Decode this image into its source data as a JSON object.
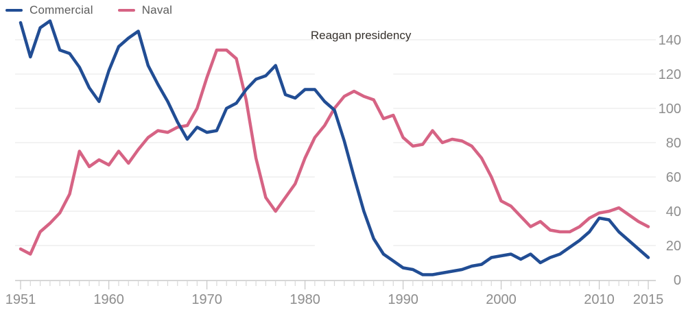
{
  "legend": {
    "items": [
      {
        "label": "Commercial"
      },
      {
        "label": "Naval"
      }
    ]
  },
  "colors": {
    "commercial": "#214d94",
    "naval": "#d66384",
    "grid": "#e6e6e6",
    "baseline": "#c8c8c8",
    "tick": "#d8d8d8",
    "tick_major": "#c6c6c6",
    "axis_text": "#8d8d8d",
    "legend_text": "#5c5c5c",
    "annotation_text": "#35302b",
    "background": "#ffffff",
    "band": "#ffffff"
  },
  "chart_data": {
    "type": "line",
    "title": "",
    "xlabel": "",
    "ylabel": "",
    "grid": true,
    "y_axis_side": "right",
    "legend_position": "top-left",
    "ylim": [
      0,
      140
    ],
    "y_ticks": [
      0,
      20,
      40,
      60,
      80,
      100,
      120,
      140
    ],
    "x_tick_labels": [
      "1951",
      "1960",
      "1970",
      "1980",
      "1990",
      "2000",
      "2010",
      "2015"
    ],
    "annotation": {
      "label": "Reagan presidency",
      "from_year": 1981,
      "to_year": 1989
    },
    "years": [
      1951,
      1952,
      1953,
      1954,
      1955,
      1956,
      1957,
      1958,
      1959,
      1960,
      1961,
      1962,
      1963,
      1964,
      1965,
      1966,
      1967,
      1968,
      1969,
      1970,
      1971,
      1972,
      1973,
      1974,
      1975,
      1976,
      1977,
      1978,
      1979,
      1980,
      1981,
      1982,
      1983,
      1984,
      1985,
      1986,
      1987,
      1988,
      1989,
      1990,
      1991,
      1992,
      1993,
      1994,
      1995,
      1996,
      1997,
      1998,
      1999,
      2000,
      2001,
      2002,
      2003,
      2004,
      2005,
      2006,
      2007,
      2008,
      2009,
      2010,
      2011,
      2012,
      2013,
      2014,
      2015
    ],
    "series": [
      {
        "name": "Commercial",
        "values": [
          150,
          130,
          147,
          151,
          134,
          132,
          124,
          112,
          104,
          122,
          136,
          141,
          145,
          125,
          114,
          104,
          92,
          82,
          89,
          86,
          87,
          100,
          103,
          111,
          117,
          119,
          125,
          108,
          106,
          111,
          111,
          104,
          99,
          81,
          60,
          40,
          24,
          15,
          11,
          7,
          6,
          3,
          3,
          4,
          5,
          6,
          8,
          9,
          13,
          14,
          15,
          12,
          15,
          10,
          13,
          15,
          19,
          23,
          28,
          36,
          35,
          28,
          23,
          18,
          13
        ]
      },
      {
        "name": "Naval",
        "values": [
          18,
          15,
          28,
          33,
          39,
          50,
          75,
          66,
          70,
          67,
          75,
          68,
          76,
          83,
          87,
          86,
          89,
          90,
          100,
          118,
          134,
          134,
          129,
          105,
          71,
          48,
          40,
          48,
          56,
          71,
          83,
          90,
          100,
          107,
          110,
          107,
          105,
          94,
          96,
          83,
          78,
          79,
          87,
          80,
          82,
          81,
          78,
          71,
          60,
          46,
          43,
          37,
          31,
          34,
          29,
          28,
          28,
          31,
          36,
          39,
          40,
          42,
          38,
          34,
          31
        ]
      }
    ]
  }
}
